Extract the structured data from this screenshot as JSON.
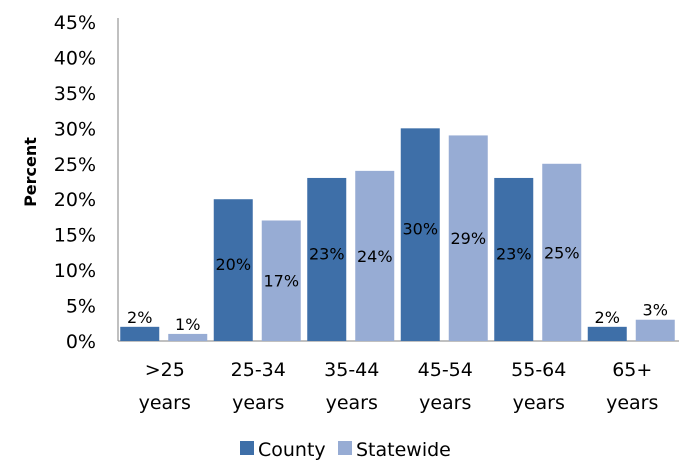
{
  "chart_data": {
    "type": "bar",
    "title": "",
    "xlabel": "",
    "ylabel": "Percent",
    "ylim": [
      0,
      45
    ],
    "y_ticks": [
      "0%",
      "5%",
      "10%",
      "15%",
      "20%",
      "25%",
      "30%",
      "35%",
      "40%",
      "45%"
    ],
    "categories": [
      [
        ">25",
        "years"
      ],
      [
        "25-34",
        "years"
      ],
      [
        "35-44",
        "years"
      ],
      [
        "45-54",
        "years"
      ],
      [
        "55-64",
        "years"
      ],
      [
        "65+",
        "years"
      ]
    ],
    "series": [
      {
        "name": "County",
        "color": "#3E6FA8",
        "values": [
          2,
          20,
          23,
          30,
          23,
          2
        ],
        "labels": [
          "2%",
          "20%",
          "23%",
          "30%",
          "23%",
          "2%"
        ]
      },
      {
        "name": "Statewide",
        "color": "#97ACD4",
        "values": [
          1,
          17,
          24,
          29,
          25,
          3
        ],
        "labels": [
          "1%",
          "17%",
          "24%",
          "29%",
          "25%",
          "3%"
        ]
      }
    ],
    "grid": false,
    "legend_position": "bottom"
  }
}
